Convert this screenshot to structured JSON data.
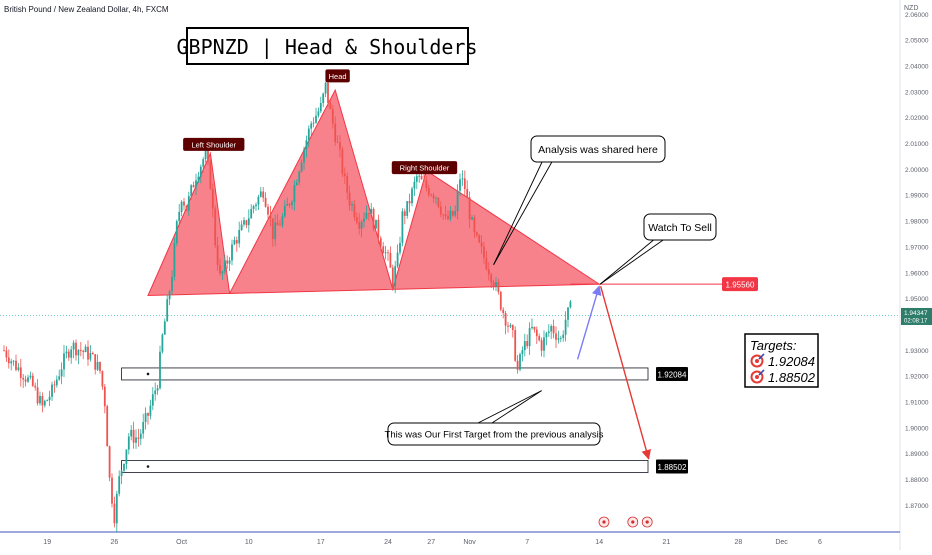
{
  "chart_data": {
    "type": "candlestick",
    "symbol_title": "British Pound / New Zealand Dollar, 4h, FXCM",
    "title": "GBPNZD | Head & Shoulders",
    "currency": "NZD",
    "y_range": [
      1.862,
      2.064
    ],
    "y_ticks": [
      "2.06000",
      "2.05000",
      "2.04000",
      "2.03000",
      "2.02000",
      "2.01000",
      "2.00000",
      "1.99000",
      "1.98000",
      "1.97000",
      "1.96000",
      "1.95000",
      "1.93000",
      "1.92000",
      "1.91000",
      "1.90000",
      "1.89000",
      "1.88000",
      "1.87000"
    ],
    "x_ticks": [
      {
        "label": "19",
        "i": 9
      },
      {
        "label": "26",
        "i": 23
      },
      {
        "label": "Oct",
        "i": 37
      },
      {
        "label": "10",
        "i": 51
      },
      {
        "label": "17",
        "i": 66
      },
      {
        "label": "24",
        "i": 80
      },
      {
        "label": "27",
        "i": 89
      },
      {
        "label": "Nov",
        "i": 97
      },
      {
        "label": "7",
        "i": 109
      },
      {
        "label": "14",
        "i": 124
      },
      {
        "label": "21",
        "i": 138
      },
      {
        "label": "28",
        "i": 153
      },
      {
        "label": "Dec",
        "i": 162
      },
      {
        "label": "6",
        "i": 170
      }
    ],
    "current_price": "1.94347",
    "countdown": "02:08:17",
    "levels": {
      "neckline_price": 1.9556,
      "neckline_label": "1.95560",
      "target1": 1.92084,
      "target1_label": "1.92084",
      "target2": 1.88502,
      "target2_label": "1.88502"
    },
    "close_path": [
      [
        0,
        1.93
      ],
      [
        2,
        1.925
      ],
      [
        4,
        1.921
      ],
      [
        6,
        1.916
      ],
      [
        8,
        1.908
      ],
      [
        10,
        1.914
      ],
      [
        12,
        1.924
      ],
      [
        14,
        1.932
      ],
      [
        16,
        1.93
      ],
      [
        18,
        1.928
      ],
      [
        20,
        1.922
      ],
      [
        21,
        1.91
      ],
      [
        22,
        1.88
      ],
      [
        23,
        1.866
      ],
      [
        24,
        1.88
      ],
      [
        26,
        1.897
      ],
      [
        28,
        1.896
      ],
      [
        30,
        1.905
      ],
      [
        32,
        1.918
      ],
      [
        33,
        1.935
      ],
      [
        34,
        1.947
      ],
      [
        35,
        1.96
      ],
      [
        36,
        1.978
      ],
      [
        37,
        1.99
      ],
      [
        38,
        1.985
      ],
      [
        40,
        1.998
      ],
      [
        42,
        2.006
      ],
      [
        43,
        1.995
      ],
      [
        44,
        1.972
      ],
      [
        45,
        1.958
      ],
      [
        46,
        1.962
      ],
      [
        48,
        1.972
      ],
      [
        50,
        1.978
      ],
      [
        52,
        1.986
      ],
      [
        54,
        1.992
      ],
      [
        55,
        1.985
      ],
      [
        56,
        1.975
      ],
      [
        58,
        1.981
      ],
      [
        60,
        1.99
      ],
      [
        62,
        2.005
      ],
      [
        64,
        2.018
      ],
      [
        66,
        2.024
      ],
      [
        67,
        2.032
      ],
      [
        68,
        2.022
      ],
      [
        70,
        2.005
      ],
      [
        71,
        1.995
      ],
      [
        72,
        1.988
      ],
      [
        74,
        1.98
      ],
      [
        76,
        1.985
      ],
      [
        78,
        1.975
      ],
      [
        80,
        1.965
      ],
      [
        81,
        1.957
      ],
      [
        82,
        1.965
      ],
      [
        83,
        1.982
      ],
      [
        84,
        1.985
      ],
      [
        86,
        1.997
      ],
      [
        88,
        1.993
      ],
      [
        90,
        1.99
      ],
      [
        92,
        1.98
      ],
      [
        94,
        1.983
      ],
      [
        95,
        1.997
      ],
      [
        96,
        1.993
      ],
      [
        97,
        1.983
      ],
      [
        98,
        1.974
      ],
      [
        100,
        1.966
      ],
      [
        102,
        1.957
      ],
      [
        104,
        1.945
      ],
      [
        106,
        1.935
      ],
      [
        107,
        1.922
      ],
      [
        108,
        1.93
      ],
      [
        110,
        1.938
      ],
      [
        112,
        1.932
      ],
      [
        114,
        1.939
      ],
      [
        116,
        1.934
      ],
      [
        117,
        1.942
      ],
      [
        118,
        1.946
      ]
    ],
    "annotations": {
      "left_shoulder": "Left Shoulder",
      "head": "Head",
      "right_shoulder": "Right Shoulder",
      "analysis_shared": "Analysis was shared here",
      "watch_to_sell": "Watch To Sell",
      "first_target": "This was Our First Target from the previous analysis"
    },
    "targets_box": {
      "title": "Targets:",
      "t1": "1.92084",
      "t2": "1.88502"
    },
    "colors": {
      "up": "#26a69a",
      "down": "#ef5350",
      "pattern_fill": "#f23645",
      "neckline": "#f23645",
      "label_dark": "#5d0000",
      "price_tag": "#2e7d6a",
      "arrow_blue": "#7b7bf5",
      "arrow_red": "#e53935"
    }
  }
}
